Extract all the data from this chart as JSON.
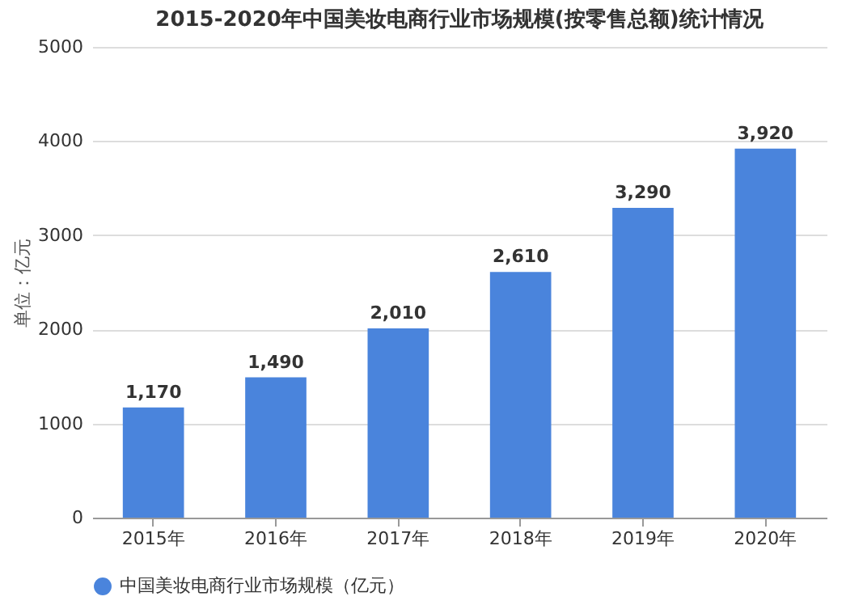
{
  "chart_data": {
    "type": "bar",
    "title": "2015-2020年中国美妆电商行业市场规模(按零售总额)统计情况",
    "ylabel": "单位：亿元",
    "categories": [
      "2015年",
      "2016年",
      "2017年",
      "2018年",
      "2019年",
      "2020年"
    ],
    "series": [
      {
        "name": "中国美妆电商行业市场规模（亿元）",
        "color": "#4a84dc",
        "values": [
          1170,
          1490,
          2010,
          2610,
          3290,
          3920
        ],
        "value_labels": [
          "1,170",
          "1,490",
          "2,010",
          "2,610",
          "3,290",
          "3,920"
        ]
      }
    ],
    "ylim": [
      0,
      5000
    ],
    "yticks": [
      0,
      1000,
      2000,
      3000,
      4000,
      5000
    ],
    "grid": "y",
    "legend": "bottom"
  }
}
